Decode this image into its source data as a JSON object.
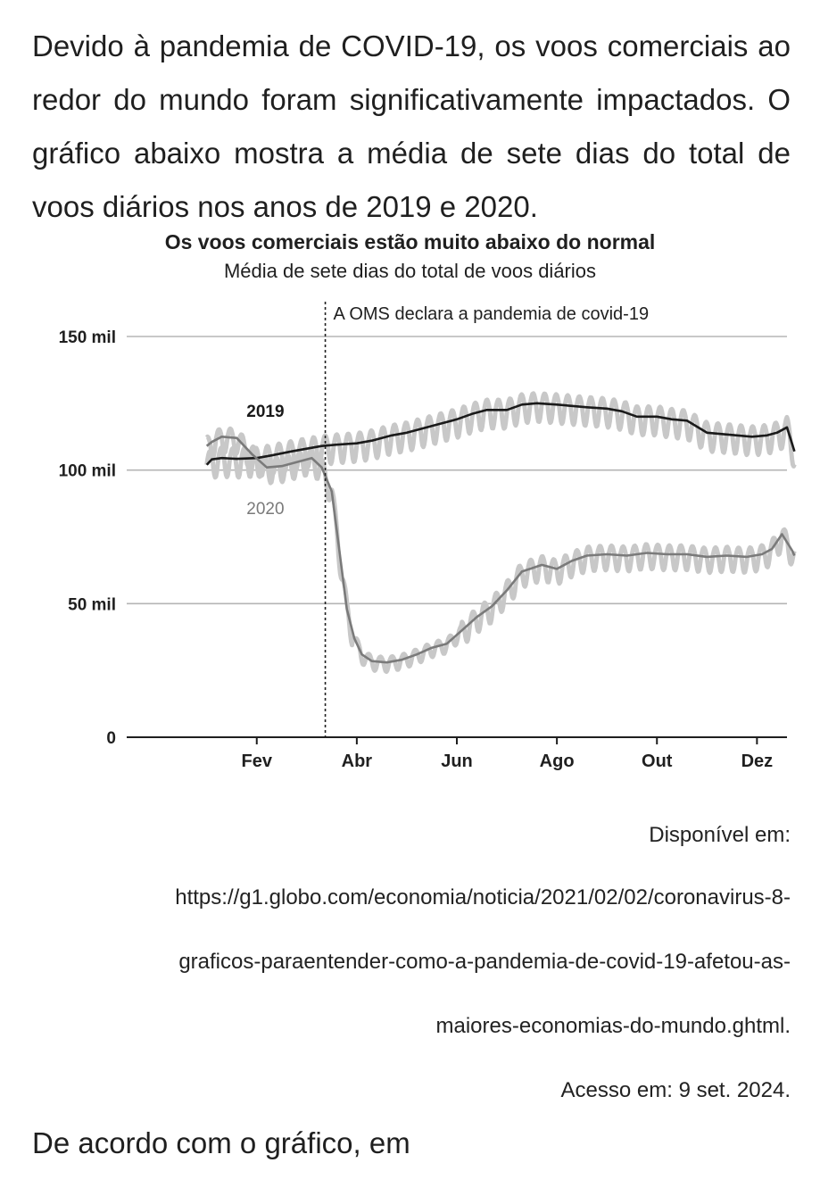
{
  "intro": "Devido à pandemia de COVID-19, os voos comerciais ao redor do mundo foram significativamente impactados. O gráfico abaixo mostra a média de sete dias do total de voos diários nos anos de 2019 e 2020.",
  "chart_data": {
    "type": "line",
    "title": "Os voos comerciais estão muito abaixo do normal",
    "subtitle": "Média de sete dias do total de voos diários",
    "annotation": "A OMS declara a pandemia de covid-19",
    "annotation_x": 2.37,
    "yticks": [
      {
        "value": 0,
        "label": "0"
      },
      {
        "value": 50000,
        "label": "50 mil"
      },
      {
        "value": 100000,
        "label": "100 mil"
      },
      {
        "value": 150000,
        "label": "150 mil"
      }
    ],
    "xticks": [
      {
        "value": 1,
        "label": "Fev"
      },
      {
        "value": 3,
        "label": "Abr"
      },
      {
        "value": 5,
        "label": "Jun"
      },
      {
        "value": 7,
        "label": "Ago"
      },
      {
        "value": 9,
        "label": "Out"
      },
      {
        "value": 11,
        "label": "Dez"
      }
    ],
    "xlim": [
      -1.6,
      11.6
    ],
    "ylim": [
      0,
      150000
    ],
    "grid": true,
    "series": [
      {
        "name": "2019",
        "color": "#1a1a1a",
        "daily_color": "#c8c8c8",
        "x": [
          0.0,
          0.1,
          0.3,
          0.6,
          1.0,
          1.3,
          1.7,
          2.0,
          2.3,
          2.6,
          3.0,
          3.3,
          3.7,
          4.0,
          4.3,
          4.6,
          5.0,
          5.3,
          5.6,
          6.0,
          6.3,
          6.6,
          7.0,
          7.3,
          7.6,
          8.0,
          8.3,
          8.6,
          9.0,
          9.3,
          9.6,
          10.0,
          10.3,
          10.6,
          10.9,
          11.2,
          11.4,
          11.6,
          11.75
        ],
        "y": [
          102000,
          104000,
          104500,
          104200,
          104500,
          105500,
          107000,
          108000,
          109000,
          109500,
          110000,
          111000,
          113000,
          114000,
          115500,
          117000,
          119000,
          121000,
          122500,
          122500,
          124500,
          125000,
          124500,
          124000,
          123500,
          123000,
          122000,
          120000,
          120000,
          119000,
          118500,
          114000,
          113500,
          113000,
          112500,
          113000,
          114000,
          116000,
          107000
        ],
        "label_x": 1.55,
        "label_y": 120000
      },
      {
        "name": "2020",
        "color": "#7a7a7a",
        "daily_color": "#c8c8c8",
        "x": [
          0.0,
          0.1,
          0.3,
          0.6,
          0.9,
          1.2,
          1.5,
          1.8,
          2.1,
          2.3,
          2.5,
          2.65,
          2.8,
          2.95,
          3.1,
          3.3,
          3.6,
          3.9,
          4.2,
          4.5,
          4.8,
          5.1,
          5.4,
          5.7,
          6.0,
          6.3,
          6.7,
          7.0,
          7.3,
          7.6,
          8.0,
          8.4,
          8.8,
          9.2,
          9.6,
          10.0,
          10.4,
          10.8,
          11.1,
          11.3,
          11.5,
          11.7,
          11.75
        ],
        "y": [
          109000,
          110500,
          112500,
          112000,
          106000,
          101000,
          101500,
          103000,
          104500,
          101000,
          92000,
          70000,
          48000,
          37000,
          31000,
          28500,
          28000,
          29000,
          31000,
          33500,
          35000,
          40000,
          45000,
          49000,
          55000,
          62000,
          64500,
          63000,
          66000,
          68000,
          68500,
          68000,
          69000,
          68500,
          68500,
          67500,
          68000,
          67500,
          68500,
          70500,
          76000,
          70000,
          68000
        ],
        "label_x": 1.55,
        "label_y": 83500
      }
    ]
  },
  "source": {
    "label": "Disponível em:",
    "url_line1": "https://g1.globo.com/economia/noticia/2021/02/02/coronavirus-8-",
    "url_line2": "graficos-paraentender-como-a-pandemia-de-covid-19-afetou-as-",
    "url_line3": "maiores-economias-do-mundo.ghtml.",
    "accessed": "Acesso em: 9 set. 2024."
  },
  "question": "De acordo com o gráfico, em"
}
